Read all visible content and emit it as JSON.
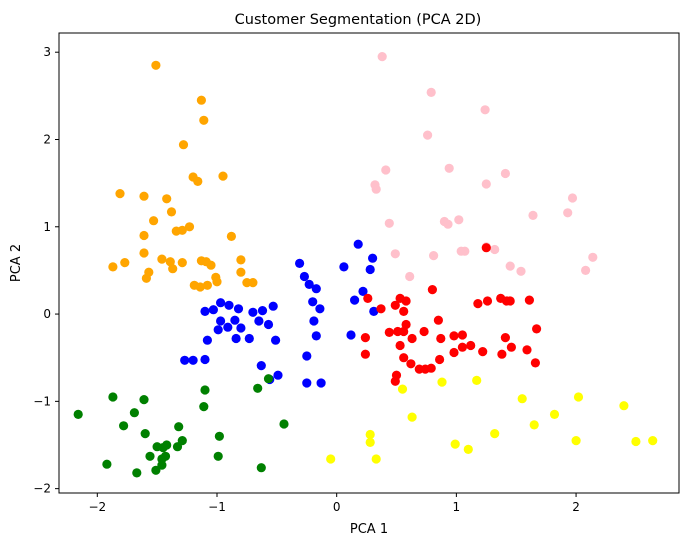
{
  "chart_data": {
    "type": "scatter",
    "title": "Customer Segmentation (PCA 2D)",
    "xlabel": "PCA 1",
    "ylabel": "PCA 2",
    "xlim": [
      -2.32,
      2.86
    ],
    "ylim": [
      -2.05,
      3.22
    ],
    "x_ticks": [
      -2,
      -1,
      0,
      1,
      2
    ],
    "y_ticks": [
      -2,
      -1,
      0,
      1,
      2,
      3
    ],
    "grid": false,
    "legend": "none",
    "series": [
      {
        "color": "#ffa500",
        "points": [
          [
            -1.51,
            2.85
          ],
          [
            -1.13,
            2.45
          ],
          [
            -1.11,
            2.22
          ],
          [
            -1.28,
            1.94
          ],
          [
            -1.2,
            1.57
          ],
          [
            -1.16,
            1.52
          ],
          [
            -0.95,
            1.58
          ],
          [
            -1.81,
            1.38
          ],
          [
            -1.61,
            1.35
          ],
          [
            -1.42,
            1.32
          ],
          [
            -1.38,
            1.17
          ],
          [
            -1.53,
            1.07
          ],
          [
            -1.23,
            1.0
          ],
          [
            -1.61,
            0.9
          ],
          [
            -1.34,
            0.95
          ],
          [
            -1.29,
            0.96
          ],
          [
            -1.46,
            0.63
          ],
          [
            -1.61,
            0.7
          ],
          [
            -1.77,
            0.59
          ],
          [
            -1.87,
            0.54
          ],
          [
            -1.57,
            0.48
          ],
          [
            -1.59,
            0.41
          ],
          [
            -1.39,
            0.6
          ],
          [
            -1.37,
            0.52
          ],
          [
            -1.29,
            0.59
          ],
          [
            -1.13,
            0.61
          ],
          [
            -1.09,
            0.6
          ],
          [
            -1.05,
            0.56
          ],
          [
            -1.19,
            0.33
          ],
          [
            -1.14,
            0.31
          ],
          [
            -1.08,
            0.33
          ],
          [
            -1.01,
            0.42
          ],
          [
            -1.0,
            0.37
          ],
          [
            -0.88,
            0.89
          ],
          [
            -0.8,
            0.62
          ],
          [
            -0.8,
            0.48
          ],
          [
            -0.75,
            0.36
          ],
          [
            -0.7,
            0.36
          ]
        ]
      },
      {
        "color": "#ffc0cb",
        "points": [
          [
            0.38,
            2.95
          ],
          [
            0.79,
            2.54
          ],
          [
            1.24,
            2.34
          ],
          [
            0.76,
            2.05
          ],
          [
            0.41,
            1.65
          ],
          [
            0.94,
            1.67
          ],
          [
            1.25,
            1.49
          ],
          [
            1.41,
            1.61
          ],
          [
            0.32,
            1.48
          ],
          [
            0.33,
            1.43
          ],
          [
            1.97,
            1.33
          ],
          [
            1.93,
            1.16
          ],
          [
            1.64,
            1.13
          ],
          [
            0.44,
            1.04
          ],
          [
            0.9,
            1.06
          ],
          [
            0.93,
            1.03
          ],
          [
            1.02,
            1.08
          ],
          [
            1.04,
            0.72
          ],
          [
            1.07,
            0.72
          ],
          [
            1.25,
            0.77
          ],
          [
            1.32,
            0.74
          ],
          [
            0.49,
            0.69
          ],
          [
            0.81,
            0.67
          ],
          [
            0.61,
            0.43
          ],
          [
            1.45,
            0.55
          ],
          [
            1.54,
            0.49
          ],
          [
            2.08,
            0.5
          ],
          [
            2.14,
            0.65
          ]
        ]
      },
      {
        "color": "#0000ff",
        "points": [
          [
            0.18,
            0.8
          ],
          [
            0.3,
            0.64
          ],
          [
            0.06,
            0.54
          ],
          [
            0.28,
            0.51
          ],
          [
            -0.31,
            0.58
          ],
          [
            -0.27,
            0.43
          ],
          [
            -0.23,
            0.34
          ],
          [
            -0.17,
            0.29
          ],
          [
            -0.2,
            0.14
          ],
          [
            -0.14,
            0.06
          ],
          [
            -0.19,
            -0.08
          ],
          [
            -0.17,
            -0.25
          ],
          [
            -0.25,
            -0.48
          ],
          [
            -0.25,
            -0.79
          ],
          [
            -0.13,
            -0.79
          ],
          [
            0.22,
            0.26
          ],
          [
            0.15,
            0.16
          ],
          [
            0.31,
            0.03
          ],
          [
            0.12,
            -0.24
          ],
          [
            -0.53,
            0.09
          ],
          [
            -0.62,
            0.04
          ],
          [
            -0.57,
            -0.12
          ],
          [
            -0.51,
            -0.3
          ],
          [
            -0.63,
            -0.59
          ],
          [
            -0.56,
            -0.75
          ],
          [
            -0.49,
            -0.7
          ],
          [
            -0.97,
            0.13
          ],
          [
            -0.9,
            0.1
          ],
          [
            -1.03,
            0.05
          ],
          [
            -1.1,
            0.03
          ],
          [
            -0.97,
            -0.08
          ],
          [
            -0.82,
            0.06
          ],
          [
            -0.85,
            -0.07
          ],
          [
            -0.91,
            -0.15
          ],
          [
            -0.8,
            -0.16
          ],
          [
            -0.7,
            0.02
          ],
          [
            -0.65,
            -0.08
          ],
          [
            -0.73,
            -0.28
          ],
          [
            -0.84,
            -0.28
          ],
          [
            -0.99,
            -0.18
          ],
          [
            -1.08,
            -0.3
          ],
          [
            -1.2,
            -0.53
          ],
          [
            -1.27,
            -0.53
          ],
          [
            -1.1,
            -0.52
          ]
        ]
      },
      {
        "color": "#ff0000",
        "points": [
          [
            1.25,
            0.76
          ],
          [
            0.8,
            0.28
          ],
          [
            0.58,
            0.15
          ],
          [
            0.37,
            0.06
          ],
          [
            0.26,
            0.18
          ],
          [
            0.24,
            -0.27
          ],
          [
            0.24,
            -0.46
          ],
          [
            0.53,
            0.18
          ],
          [
            0.49,
            0.1
          ],
          [
            0.56,
            0.03
          ],
          [
            0.44,
            -0.21
          ],
          [
            0.51,
            -0.2
          ],
          [
            0.56,
            -0.2
          ],
          [
            0.53,
            -0.36
          ],
          [
            0.63,
            -0.28
          ],
          [
            0.73,
            -0.2
          ],
          [
            0.85,
            -0.07
          ],
          [
            0.98,
            -0.25
          ],
          [
            0.87,
            -0.28
          ],
          [
            1.05,
            -0.24
          ],
          [
            0.58,
            -0.12
          ],
          [
            0.56,
            -0.5
          ],
          [
            0.5,
            -0.7
          ],
          [
            0.49,
            -0.77
          ],
          [
            0.62,
            -0.57
          ],
          [
            0.69,
            -0.63
          ],
          [
            0.74,
            -0.63
          ],
          [
            0.79,
            -0.62
          ],
          [
            0.86,
            -0.52
          ],
          [
            0.98,
            -0.44
          ],
          [
            1.05,
            -0.38
          ],
          [
            1.12,
            -0.36
          ],
          [
            1.18,
            0.12
          ],
          [
            1.26,
            0.15
          ],
          [
            1.37,
            0.18
          ],
          [
            1.42,
            0.15
          ],
          [
            1.45,
            0.15
          ],
          [
            1.61,
            0.16
          ],
          [
            1.41,
            -0.27
          ],
          [
            1.46,
            -0.38
          ],
          [
            1.59,
            -0.41
          ],
          [
            1.22,
            -0.43
          ],
          [
            1.38,
            -0.46
          ],
          [
            1.66,
            -0.56
          ],
          [
            1.67,
            -0.17
          ]
        ]
      },
      {
        "color": "#008000",
        "points": [
          [
            -2.16,
            -1.15
          ],
          [
            -1.87,
            -0.95
          ],
          [
            -1.78,
            -1.28
          ],
          [
            -1.69,
            -1.13
          ],
          [
            -1.6,
            -1.37
          ],
          [
            -1.61,
            -0.98
          ],
          [
            -1.5,
            -1.52
          ],
          [
            -1.45,
            -1.53
          ],
          [
            -1.43,
            -1.63
          ],
          [
            -1.46,
            -1.66
          ],
          [
            -1.46,
            -1.73
          ],
          [
            -1.42,
            -1.5
          ],
          [
            -1.33,
            -1.52
          ],
          [
            -1.32,
            -1.29
          ],
          [
            -1.29,
            -1.45
          ],
          [
            -1.56,
            -1.63
          ],
          [
            -1.67,
            -1.82
          ],
          [
            -1.51,
            -1.79
          ],
          [
            -1.92,
            -1.72
          ],
          [
            -1.1,
            -0.87
          ],
          [
            -1.11,
            -1.06
          ],
          [
            -0.98,
            -1.4
          ],
          [
            -0.99,
            -1.63
          ],
          [
            -0.66,
            -0.85
          ],
          [
            -0.57,
            -0.74
          ],
          [
            -0.44,
            -1.26
          ],
          [
            -0.63,
            -1.76
          ]
        ]
      },
      {
        "color": "#ffff00",
        "points": [
          [
            0.55,
            -0.86
          ],
          [
            0.88,
            -0.78
          ],
          [
            1.17,
            -0.76
          ],
          [
            1.55,
            -0.97
          ],
          [
            1.65,
            -1.27
          ],
          [
            2.02,
            -0.95
          ],
          [
            1.82,
            -1.15
          ],
          [
            2.4,
            -1.05
          ],
          [
            2.0,
            -1.45
          ],
          [
            2.5,
            -1.46
          ],
          [
            2.64,
            -1.45
          ],
          [
            1.32,
            -1.37
          ],
          [
            1.1,
            -1.55
          ],
          [
            0.99,
            -1.49
          ],
          [
            0.63,
            -1.18
          ],
          [
            0.28,
            -1.38
          ],
          [
            0.28,
            -1.47
          ],
          [
            0.33,
            -1.66
          ],
          [
            -0.05,
            -1.66
          ]
        ]
      }
    ]
  }
}
